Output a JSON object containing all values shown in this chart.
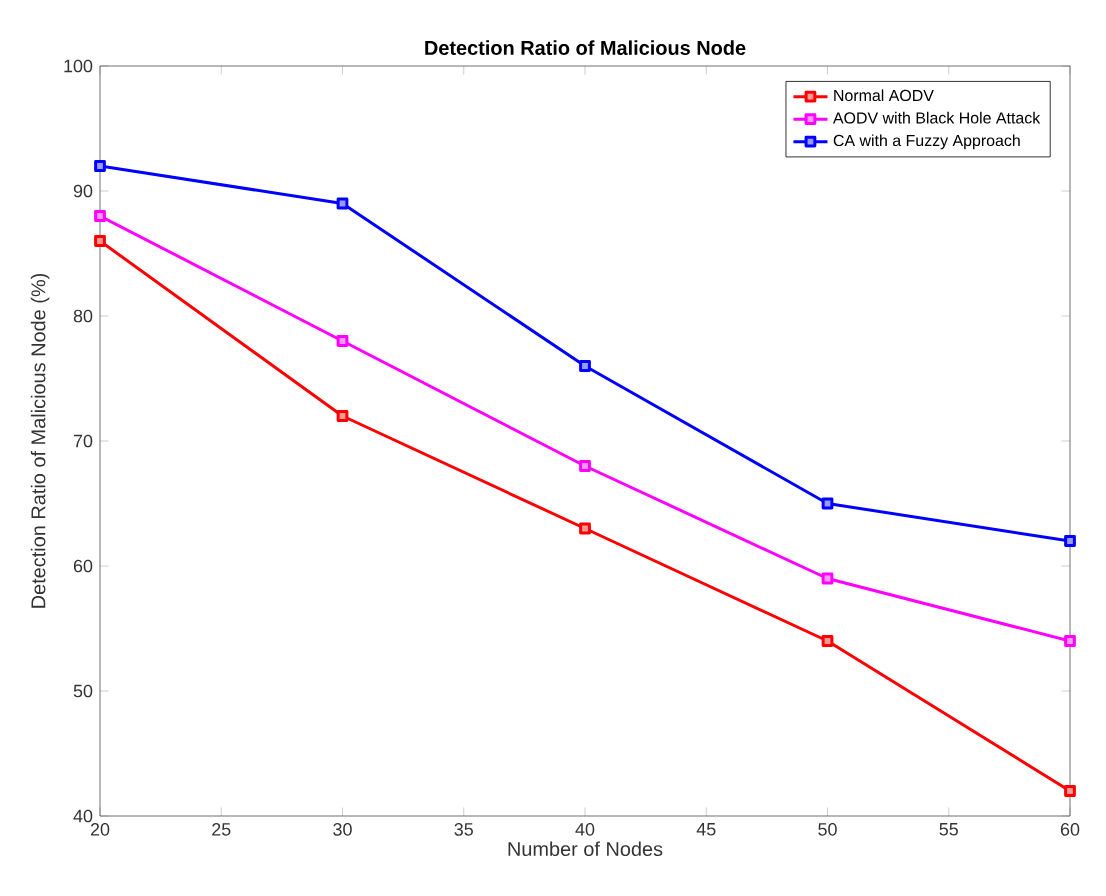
{
  "chart_data": {
    "type": "line",
    "title": "Detection Ratio of Malicious Node",
    "xlabel": "Number of Nodes",
    "ylabel": "Detection Ratio of Malicious Node (%)",
    "x": [
      20,
      30,
      40,
      50,
      60
    ],
    "series": [
      {
        "name": "Normal AODV",
        "color": "#ff0000",
        "values": [
          86,
          72,
          63,
          54,
          42
        ]
      },
      {
        "name": "AODV with Black Hole Attack",
        "color": "#ff00ff",
        "values": [
          88,
          78,
          68,
          59,
          54
        ]
      },
      {
        "name": "CA with a Fuzzy Approach",
        "color": "#0000ff",
        "values": [
          92,
          89,
          76,
          65,
          62
        ]
      }
    ],
    "xlim": [
      20,
      60
    ],
    "xticks": [
      20,
      25,
      30,
      35,
      40,
      45,
      50,
      55,
      60
    ],
    "ylim": [
      40,
      100
    ],
    "yticks": [
      40,
      50,
      60,
      70,
      80,
      90,
      100
    ],
    "legend": "top right",
    "marker": "square",
    "line_style": "solid",
    "grid": false
  }
}
